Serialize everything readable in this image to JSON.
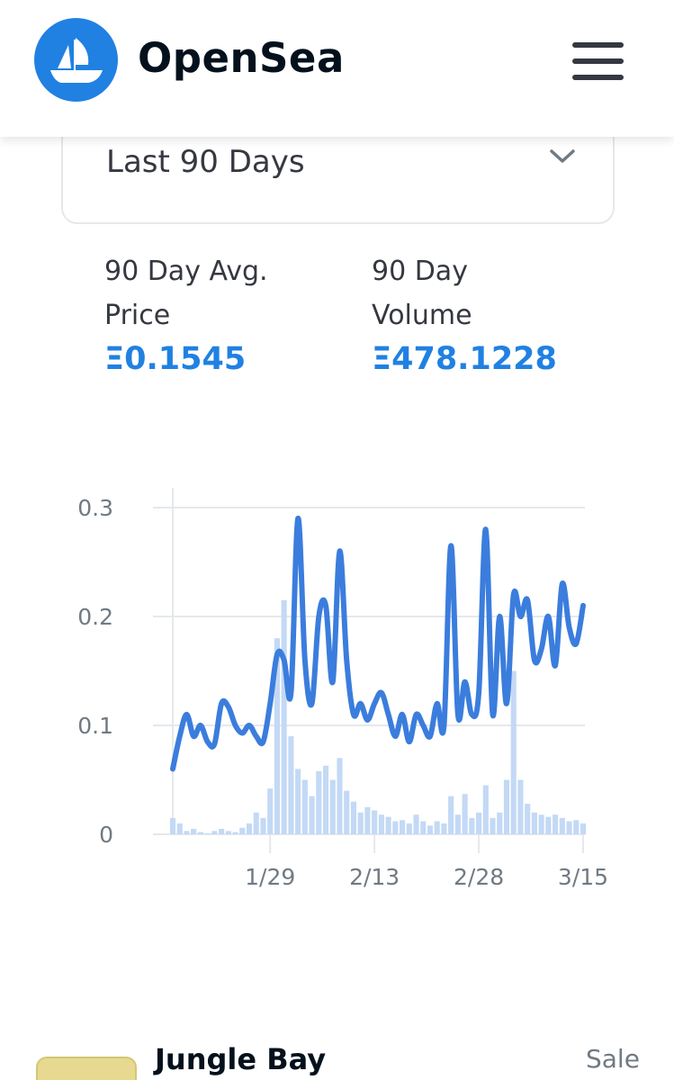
{
  "header": {
    "brand": "OpenSea",
    "logo_icon": "opensea-boat-icon",
    "menu_icon": "hamburger-menu-icon",
    "brand_color": "#2081e2"
  },
  "filter": {
    "selected": "Last 90 Days",
    "chevron_icon": "chevron-down-icon"
  },
  "stats": {
    "avg_price_label": "90 Day Avg. Price",
    "avg_price_value": "Ξ0.1545",
    "volume_label": "90 Day Volume",
    "volume_value": "Ξ478.1228"
  },
  "chart_data": {
    "type": "line",
    "title": "",
    "xlabel": "",
    "ylabel": "",
    "ylim": [
      0,
      0.3
    ],
    "yticks": [
      "0",
      "0.1",
      "0.2",
      "0.3"
    ],
    "xticks": [
      {
        "label": "1/29",
        "day": 19
      },
      {
        "label": "2/13",
        "day": 34
      },
      {
        "label": "2/28",
        "day": 49
      },
      {
        "label": "3/15",
        "day": 64
      }
    ],
    "x_range": [
      5,
      64
    ],
    "series": [
      {
        "name": "Average Price",
        "kind": "line",
        "color": "#3b7ddd",
        "x": [
          5,
          6,
          7,
          8,
          9,
          10,
          11,
          12,
          13,
          14,
          15,
          16,
          17,
          18,
          19,
          20,
          21,
          22,
          23,
          24,
          25,
          26,
          27,
          28,
          29,
          30,
          31,
          32,
          33,
          34,
          35,
          36,
          37,
          38,
          39,
          40,
          41,
          42,
          43,
          44,
          45,
          46,
          47,
          48,
          49,
          50,
          51,
          52,
          53,
          54,
          55,
          56,
          57,
          58,
          59,
          60,
          61,
          62,
          63,
          64
        ],
        "values": [
          0.06,
          0.09,
          0.11,
          0.09,
          0.1,
          0.085,
          0.083,
          0.12,
          0.117,
          0.1,
          0.093,
          0.1,
          0.09,
          0.085,
          0.12,
          0.165,
          0.16,
          0.13,
          0.29,
          0.16,
          0.12,
          0.2,
          0.21,
          0.14,
          0.26,
          0.16,
          0.11,
          0.12,
          0.105,
          0.12,
          0.13,
          0.11,
          0.09,
          0.11,
          0.085,
          0.11,
          0.1,
          0.09,
          0.12,
          0.1,
          0.265,
          0.11,
          0.14,
          0.11,
          0.13,
          0.28,
          0.11,
          0.2,
          0.12,
          0.22,
          0.2,
          0.215,
          0.16,
          0.17,
          0.2,
          0.155,
          0.23,
          0.19,
          0.175,
          0.21
        ]
      },
      {
        "name": "Volume",
        "kind": "bar",
        "color": "#c3d9f5",
        "x": [
          5,
          6,
          7,
          8,
          9,
          10,
          11,
          12,
          13,
          14,
          15,
          16,
          17,
          18,
          19,
          20,
          21,
          22,
          23,
          24,
          25,
          26,
          27,
          28,
          29,
          30,
          31,
          32,
          33,
          34,
          35,
          36,
          37,
          38,
          39,
          40,
          41,
          42,
          43,
          44,
          45,
          46,
          47,
          48,
          49,
          50,
          51,
          52,
          53,
          54,
          55,
          56,
          57,
          58,
          59,
          60,
          61,
          62,
          63,
          64
        ],
        "values": [
          0.015,
          0.01,
          0.003,
          0.005,
          0.002,
          0.001,
          0.003,
          0.005,
          0.003,
          0.002,
          0.006,
          0.01,
          0.02,
          0.015,
          0.042,
          0.18,
          0.215,
          0.09,
          0.06,
          0.05,
          0.035,
          0.058,
          0.063,
          0.05,
          0.07,
          0.04,
          0.03,
          0.02,
          0.025,
          0.022,
          0.018,
          0.016,
          0.012,
          0.013,
          0.01,
          0.018,
          0.012,
          0.008,
          0.012,
          0.01,
          0.035,
          0.018,
          0.037,
          0.015,
          0.02,
          0.045,
          0.015,
          0.02,
          0.05,
          0.15,
          0.05,
          0.028,
          0.02,
          0.018,
          0.016,
          0.018,
          0.015,
          0.012,
          0.013,
          0.01
        ]
      }
    ]
  },
  "item": {
    "title": "Jungle Bay",
    "event": "Sale"
  }
}
